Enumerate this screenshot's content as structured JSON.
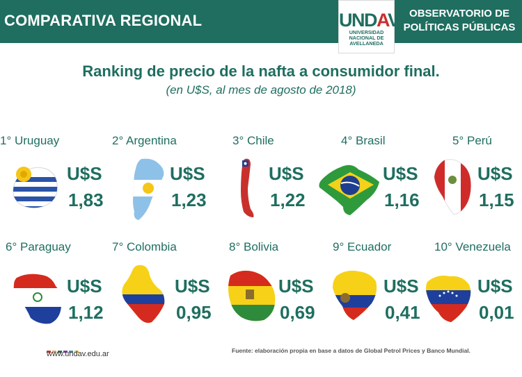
{
  "header": {
    "title": "COMPARATIVA REGIONAL",
    "logo_word_a": "UND",
    "logo_word_b": "A",
    "logo_word_c": "V",
    "logo_sub_1": "UNIVERSIDAD",
    "logo_sub_2": "NACIONAL DE",
    "logo_sub_3": "AVELLANEDA",
    "observatorio_line1": "OBSERVATORIO DE",
    "observatorio_line2": "POLÍTICAS PÚBLICAS"
  },
  "chart_data": {
    "type": "table",
    "title": "Ranking de precio de la nafta a consumidor final.",
    "subtitle": "(en U$S, al mes de agosto de 2018)",
    "currency_label": "U$S",
    "items": [
      {
        "label": "1° Uruguay",
        "country": "Uruguay",
        "value": "1,83"
      },
      {
        "label": "2° Argentina",
        "country": "Argentina",
        "value": "1,23"
      },
      {
        "label": "3° Chile",
        "country": "Chile",
        "value": "1,22"
      },
      {
        "label": "4° Brasil",
        "country": "Brasil",
        "value": "1,16"
      },
      {
        "label": "5° Perú",
        "country": "Perú",
        "value": "1,15"
      },
      {
        "label": "6° Paraguay",
        "country": "Paraguay",
        "value": "1,12"
      },
      {
        "label": "7° Colombia",
        "country": "Colombia",
        "value": "0,95"
      },
      {
        "label": "8° Bolivia",
        "country": "Bolivia",
        "value": "0,69"
      },
      {
        "label": "9° Ecuador",
        "country": "Ecuador",
        "value": "0,41"
      },
      {
        "label": "10° Venezuela",
        "country": "Venezuela",
        "value": "0,01"
      }
    ]
  },
  "footer": {
    "url": "www.undav.edu.ar",
    "source": "Fuente: elaboración propia en base a datos de Global Petrol Prices y Banco Mundial.",
    "dot_colors": [
      "#c9302c",
      "#e8a33d",
      "#1f6e60",
      "#7b3f8c",
      "#3b8dbd",
      "#f0c419"
    ]
  },
  "colors": {
    "brand_green": "#1f6e60",
    "uruguay_blue": "#2b54a8",
    "sun_yellow": "#f5c518",
    "argentina_blue": "#8ec1e8",
    "chile_red": "#c9302c",
    "brasil_green": "#2e9a3c",
    "brasil_yellow": "#f3d21a",
    "brasil_blue": "#1e3f8f",
    "peru_red": "#d02b2b",
    "paraguay_red": "#d52b1e",
    "paraguay_blue": "#1f3f9c",
    "colombia_yellow": "#f7d117",
    "colombia_blue": "#1f3f9c",
    "colombia_red": "#d52b1e",
    "bolivia_red": "#d52b1e",
    "bolivia_yellow": "#f7d117",
    "bolivia_green": "#2e8b3c",
    "ecuador_yellow": "#f7d117",
    "ecuador_blue": "#1f3f9c",
    "ecuador_red": "#d52b1e",
    "venezuela_yellow": "#f7d117",
    "venezuela_blue": "#1f3f9c",
    "venezuela_red": "#d52b1e"
  }
}
